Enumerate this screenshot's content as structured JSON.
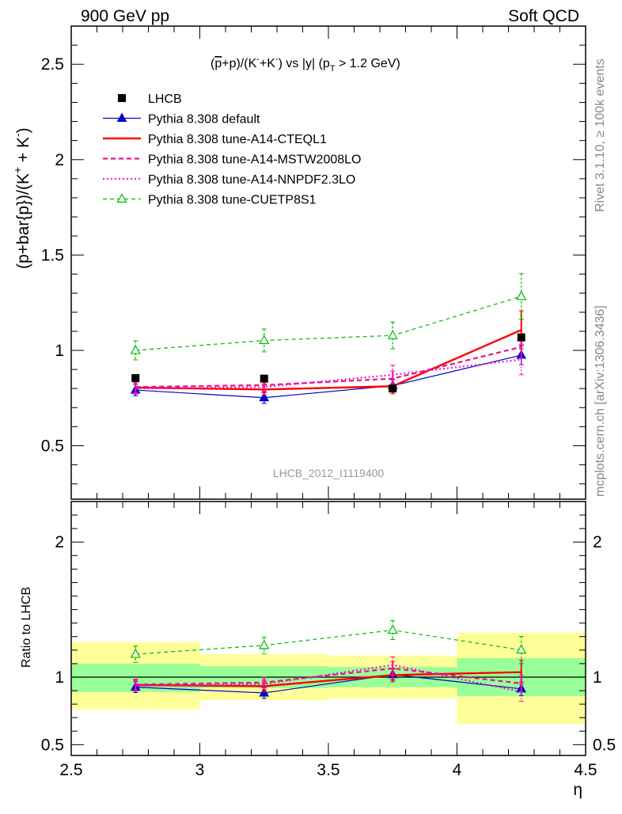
{
  "header": {
    "left": "900 GeV pp",
    "right": "Soft QCD"
  },
  "side_text": {
    "rivet": "Rivet 3.1.10, ≥ 100k events",
    "mcplots": "mcplots.cern.ch [arXiv:1306.3436]"
  },
  "chart_data": [
    {
      "type": "line",
      "panel": "main",
      "title_parts": {
        "open": "(",
        "pbar": "p",
        "mid": "+p)/(K",
        "sup1": "-",
        "mid2": "+K",
        "sup2": "-",
        "close": ") vs |y| (p",
        "sub": "T",
        "tail": " > 1.2 GeV)"
      },
      "ylabel": "(p+bar{p})/(K⁺ + K⁻)",
      "ylabel_parts": {
        "a": "(p+bar{p})/(K",
        "s1": "+",
        "b": " + K",
        "s2": "-",
        "c": ")"
      },
      "xlim": [
        2.5,
        4.5
      ],
      "ylim": [
        0.22,
        2.7
      ],
      "y_ticks": [
        0.5,
        1,
        1.5,
        2,
        2.5
      ],
      "y_tick_labels": [
        "0.5",
        "1",
        "1.5",
        "2",
        "2.5"
      ],
      "watermark": "LHCB_2012_I1119400",
      "legend_position": "top-left",
      "data": {
        "name": "LHCB",
        "color": "#000000",
        "x": [
          2.75,
          3.25,
          3.75,
          4.25
        ],
        "x_err": [
          0.25,
          0.25,
          0.25,
          0.25
        ],
        "y": [
          0.855,
          0.852,
          0.8,
          1.068
        ],
        "y_err": [
          0.012,
          0.012,
          0.012,
          0.02
        ]
      },
      "series": [
        {
          "name": "Pythia 8.308 default",
          "color": "#0000cc",
          "style": "solid",
          "marker": "triangle-filled",
          "x": [
            2.75,
            3.25,
            3.75,
            4.25
          ],
          "y": [
            0.792,
            0.752,
            0.815,
            0.975
          ],
          "y_err": [
            0.03,
            0.03,
            0.03,
            0.05
          ]
        },
        {
          "name": "Pythia 8.308 tune-A14-CTEQL1",
          "color": "#ff0000",
          "style": "solid-thick",
          "marker": "none",
          "x": [
            2.75,
            3.25,
            3.75,
            4.25
          ],
          "y": [
            0.805,
            0.795,
            0.812,
            1.107
          ],
          "y_err": [
            0.03,
            0.03,
            0.04,
            0.1
          ]
        },
        {
          "name": "Pythia 8.308 tune-A14-MSTW2008LO",
          "color": "#ee1188",
          "style": "dashed-thick",
          "marker": "none",
          "x": [
            2.75,
            3.25,
            3.75,
            4.25
          ],
          "y": [
            0.808,
            0.818,
            0.852,
            1.018
          ],
          "y_err": [
            0.03,
            0.03,
            0.04,
            0.06
          ]
        },
        {
          "name": "Pythia 8.308 tune-A14-NNPDF2.3LO",
          "color": "#ff00cc",
          "style": "dotted",
          "marker": "none",
          "x": [
            2.75,
            3.25,
            3.75,
            4.25
          ],
          "y": [
            0.8,
            0.808,
            0.872,
            0.952
          ],
          "y_err": [
            0.03,
            0.03,
            0.05,
            0.08
          ]
        },
        {
          "name": "Pythia 8.308 tune-CUETP8S1",
          "color": "#00bb00",
          "style": "dashed",
          "marker": "triangle-open",
          "x": [
            2.75,
            3.25,
            3.75,
            4.25
          ],
          "y": [
            1.0,
            1.052,
            1.078,
            1.283
          ],
          "y_err": [
            0.05,
            0.06,
            0.07,
            0.12
          ]
        }
      ]
    },
    {
      "type": "line",
      "panel": "ratio",
      "ylabel": "Ratio to LHCB",
      "xlabel": "η",
      "xlim": [
        2.5,
        4.5
      ],
      "ylim": [
        0.42,
        2.3
      ],
      "x_ticks": [
        2.5,
        3,
        3.5,
        4,
        4.5
      ],
      "x_tick_labels": [
        "2.5",
        "3",
        "3.5",
        "4",
        "4.5"
      ],
      "y_ticks": [
        0.5,
        1,
        2
      ],
      "y_tick_labels": [
        "0.5",
        "1",
        "2"
      ],
      "bands": {
        "x_edges": [
          2.5,
          3.0,
          3.5,
          4.0,
          4.5
        ],
        "inner_low": [
          0.89,
          0.92,
          0.925,
          0.86
        ],
        "inner_high": [
          1.1,
          1.08,
          1.075,
          1.14
        ],
        "outer_low": [
          0.76,
          0.83,
          0.84,
          0.65
        ],
        "outer_high": [
          1.26,
          1.17,
          1.16,
          1.33
        ],
        "inner_color": "#99ff99",
        "outer_color": "#ffff99"
      },
      "series": [
        {
          "name": "Pythia 8.308 default",
          "color": "#0000cc",
          "style": "solid",
          "marker": "triangle-filled",
          "x": [
            2.75,
            3.25,
            3.75,
            4.25
          ],
          "y": [
            0.926,
            0.883,
            1.019,
            0.913
          ],
          "y_err": [
            0.04,
            0.04,
            0.04,
            0.05
          ]
        },
        {
          "name": "Pythia 8.308 tune-A14-CTEQL1",
          "color": "#ff0000",
          "style": "solid-thick",
          "marker": "none",
          "x": [
            2.75,
            3.25,
            3.75,
            4.25
          ],
          "y": [
            0.942,
            0.933,
            1.015,
            1.037
          ],
          "y_err": [
            0.04,
            0.04,
            0.05,
            0.09
          ]
        },
        {
          "name": "Pythia 8.308 tune-A14-MSTW2008LO",
          "color": "#ee1188",
          "style": "dashed-thick",
          "marker": "none",
          "x": [
            2.75,
            3.25,
            3.75,
            4.25
          ],
          "y": [
            0.945,
            0.96,
            1.065,
            0.953
          ],
          "y_err": [
            0.04,
            0.04,
            0.05,
            0.06
          ]
        },
        {
          "name": "Pythia 8.308 tune-A14-NNPDF2.3LO",
          "color": "#ff00cc",
          "style": "dotted",
          "marker": "none",
          "x": [
            2.75,
            3.25,
            3.75,
            4.25
          ],
          "y": [
            0.936,
            0.948,
            1.09,
            0.891
          ],
          "y_err": [
            0.04,
            0.04,
            0.06,
            0.07
          ]
        },
        {
          "name": "Pythia 8.308 tune-CUETP8S1",
          "color": "#00bb00",
          "style": "dashed",
          "marker": "triangle-open",
          "x": [
            2.75,
            3.25,
            3.75,
            4.25
          ],
          "y": [
            1.17,
            1.235,
            1.348,
            1.201
          ],
          "y_err": [
            0.06,
            0.06,
            0.07,
            0.1
          ]
        }
      ]
    }
  ]
}
